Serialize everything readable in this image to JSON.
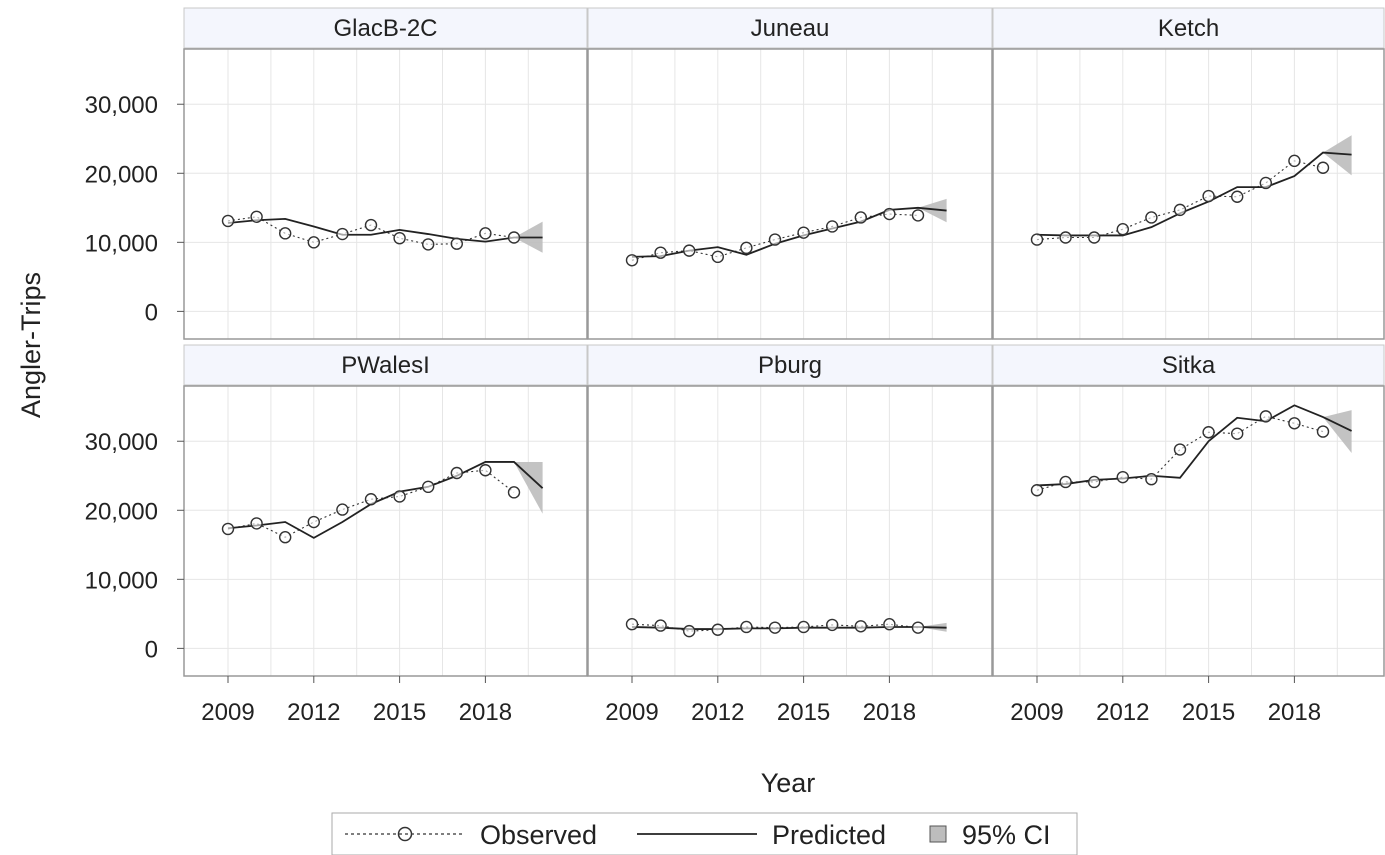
{
  "chart_data": {
    "type": "line",
    "ylabel": "Angler-Trips",
    "xlabel": "Year",
    "xlim": [
      2007.5,
      2021.5
    ],
    "ylim": [
      -4000,
      38000
    ],
    "x_ticks": [
      2009,
      2012,
      2015,
      2018
    ],
    "y_ticks": [
      0,
      10000,
      20000,
      30000
    ],
    "y_tick_labels": [
      "0",
      "10,000",
      "20,000",
      "30,000"
    ],
    "grid": true,
    "legend_position": "bottom",
    "legend": [
      "Observed",
      "Predicted",
      "95% CI"
    ],
    "colors": {
      "line": "#333333",
      "grid": "#e6e6e6",
      "frame": "#999999",
      "header_fill": "#f4f6fd",
      "band": "#bdbdbd"
    },
    "panels": [
      {
        "title": "GlacB-2C",
        "observed": {
          "x": [
            2009,
            2010,
            2011,
            2012,
            2013,
            2014,
            2015,
            2016,
            2017,
            2018,
            2019
          ],
          "y": [
            13100,
            13700,
            11300,
            10000,
            11200,
            12500,
            10600,
            9700,
            9800,
            11300,
            10700
          ]
        },
        "predicted": {
          "x": [
            2009,
            2010,
            2011,
            2012,
            2013,
            2014,
            2015,
            2016,
            2017,
            2018,
            2019,
            2020
          ],
          "y": [
            12800,
            13200,
            13400,
            12300,
            11100,
            11100,
            11800,
            11200,
            10500,
            10100,
            10700,
            10700
          ]
        },
        "ci": {
          "x": [
            2019,
            2020
          ],
          "lower": [
            10700,
            8500
          ],
          "upper": [
            10700,
            13000
          ]
        }
      },
      {
        "title": "Juneau",
        "observed": {
          "x": [
            2009,
            2010,
            2011,
            2012,
            2013,
            2014,
            2015,
            2016,
            2017,
            2018,
            2019
          ],
          "y": [
            7400,
            8500,
            8800,
            7900,
            9200,
            10400,
            11400,
            12300,
            13600,
            14100,
            13900
          ]
        },
        "predicted": {
          "x": [
            2009,
            2010,
            2011,
            2012,
            2013,
            2014,
            2015,
            2016,
            2017,
            2018,
            2019,
            2020
          ],
          "y": [
            7900,
            8000,
            8800,
            9300,
            8200,
            9800,
            11000,
            12000,
            13000,
            14700,
            15000,
            14600
          ]
        },
        "ci": {
          "x": [
            2019,
            2020
          ],
          "lower": [
            15000,
            12900
          ],
          "upper": [
            15000,
            16300
          ]
        }
      },
      {
        "title": "Ketch",
        "observed": {
          "x": [
            2009,
            2010,
            2011,
            2012,
            2013,
            2014,
            2015,
            2016,
            2017,
            2018,
            2019
          ],
          "y": [
            10400,
            10700,
            10700,
            11900,
            13600,
            14700,
            16700,
            16600,
            18600,
            21800,
            20800
          ]
        },
        "predicted": {
          "x": [
            2009,
            2010,
            2011,
            2012,
            2013,
            2014,
            2015,
            2016,
            2017,
            2018,
            2019,
            2020
          ],
          "y": [
            11100,
            11000,
            11000,
            11000,
            12200,
            14200,
            15900,
            18000,
            18000,
            19600,
            23000,
            22700
          ]
        },
        "ci": {
          "x": [
            2019,
            2020
          ],
          "lower": [
            23000,
            19700
          ],
          "upper": [
            23000,
            25500
          ]
        }
      },
      {
        "title": "PWalesI",
        "observed": {
          "x": [
            2009,
            2010,
            2011,
            2012,
            2013,
            2014,
            2015,
            2016,
            2017,
            2018,
            2019
          ],
          "y": [
            17300,
            18100,
            16100,
            18300,
            20100,
            21600,
            22000,
            23400,
            25400,
            25800,
            22600
          ]
        },
        "predicted": {
          "x": [
            2009,
            2010,
            2011,
            2012,
            2013,
            2014,
            2015,
            2016,
            2017,
            2018,
            2019,
            2020
          ],
          "y": [
            17400,
            17800,
            18300,
            16000,
            18300,
            20900,
            22700,
            23400,
            25000,
            27000,
            27000,
            23200
          ]
        },
        "ci": {
          "x": [
            2019,
            2020
          ],
          "lower": [
            27000,
            19500
          ],
          "upper": [
            27000,
            27000
          ]
        }
      },
      {
        "title": "Pburg",
        "observed": {
          "x": [
            2009,
            2010,
            2011,
            2012,
            2013,
            2014,
            2015,
            2016,
            2017,
            2018,
            2019
          ],
          "y": [
            3500,
            3300,
            2500,
            2700,
            3100,
            3000,
            3100,
            3400,
            3200,
            3500,
            3000
          ]
        },
        "predicted": {
          "x": [
            2009,
            2010,
            2011,
            2012,
            2013,
            2014,
            2015,
            2016,
            2017,
            2018,
            2019,
            2020
          ],
          "y": [
            3100,
            3000,
            2800,
            2800,
            2900,
            2900,
            3000,
            3000,
            3000,
            3100,
            3100,
            3000
          ]
        },
        "ci": {
          "x": [
            2019,
            2020
          ],
          "lower": [
            3100,
            2400
          ],
          "upper": [
            3100,
            3700
          ]
        }
      },
      {
        "title": "Sitka",
        "observed": {
          "x": [
            2009,
            2010,
            2011,
            2012,
            2013,
            2014,
            2015,
            2016,
            2017,
            2018,
            2019
          ],
          "y": [
            22900,
            24100,
            24100,
            24800,
            24500,
            28800,
            31300,
            31100,
            33600,
            32600,
            31400
          ]
        },
        "predicted": {
          "x": [
            2009,
            2010,
            2011,
            2012,
            2013,
            2014,
            2015,
            2016,
            2017,
            2018,
            2019,
            2020
          ],
          "y": [
            23600,
            23800,
            24400,
            24600,
            25000,
            24700,
            30000,
            33400,
            32900,
            35200,
            33500,
            31500
          ]
        },
        "ci": {
          "x": [
            2019,
            2020
          ],
          "lower": [
            33500,
            28300
          ],
          "upper": [
            33500,
            34500
          ]
        }
      }
    ]
  }
}
